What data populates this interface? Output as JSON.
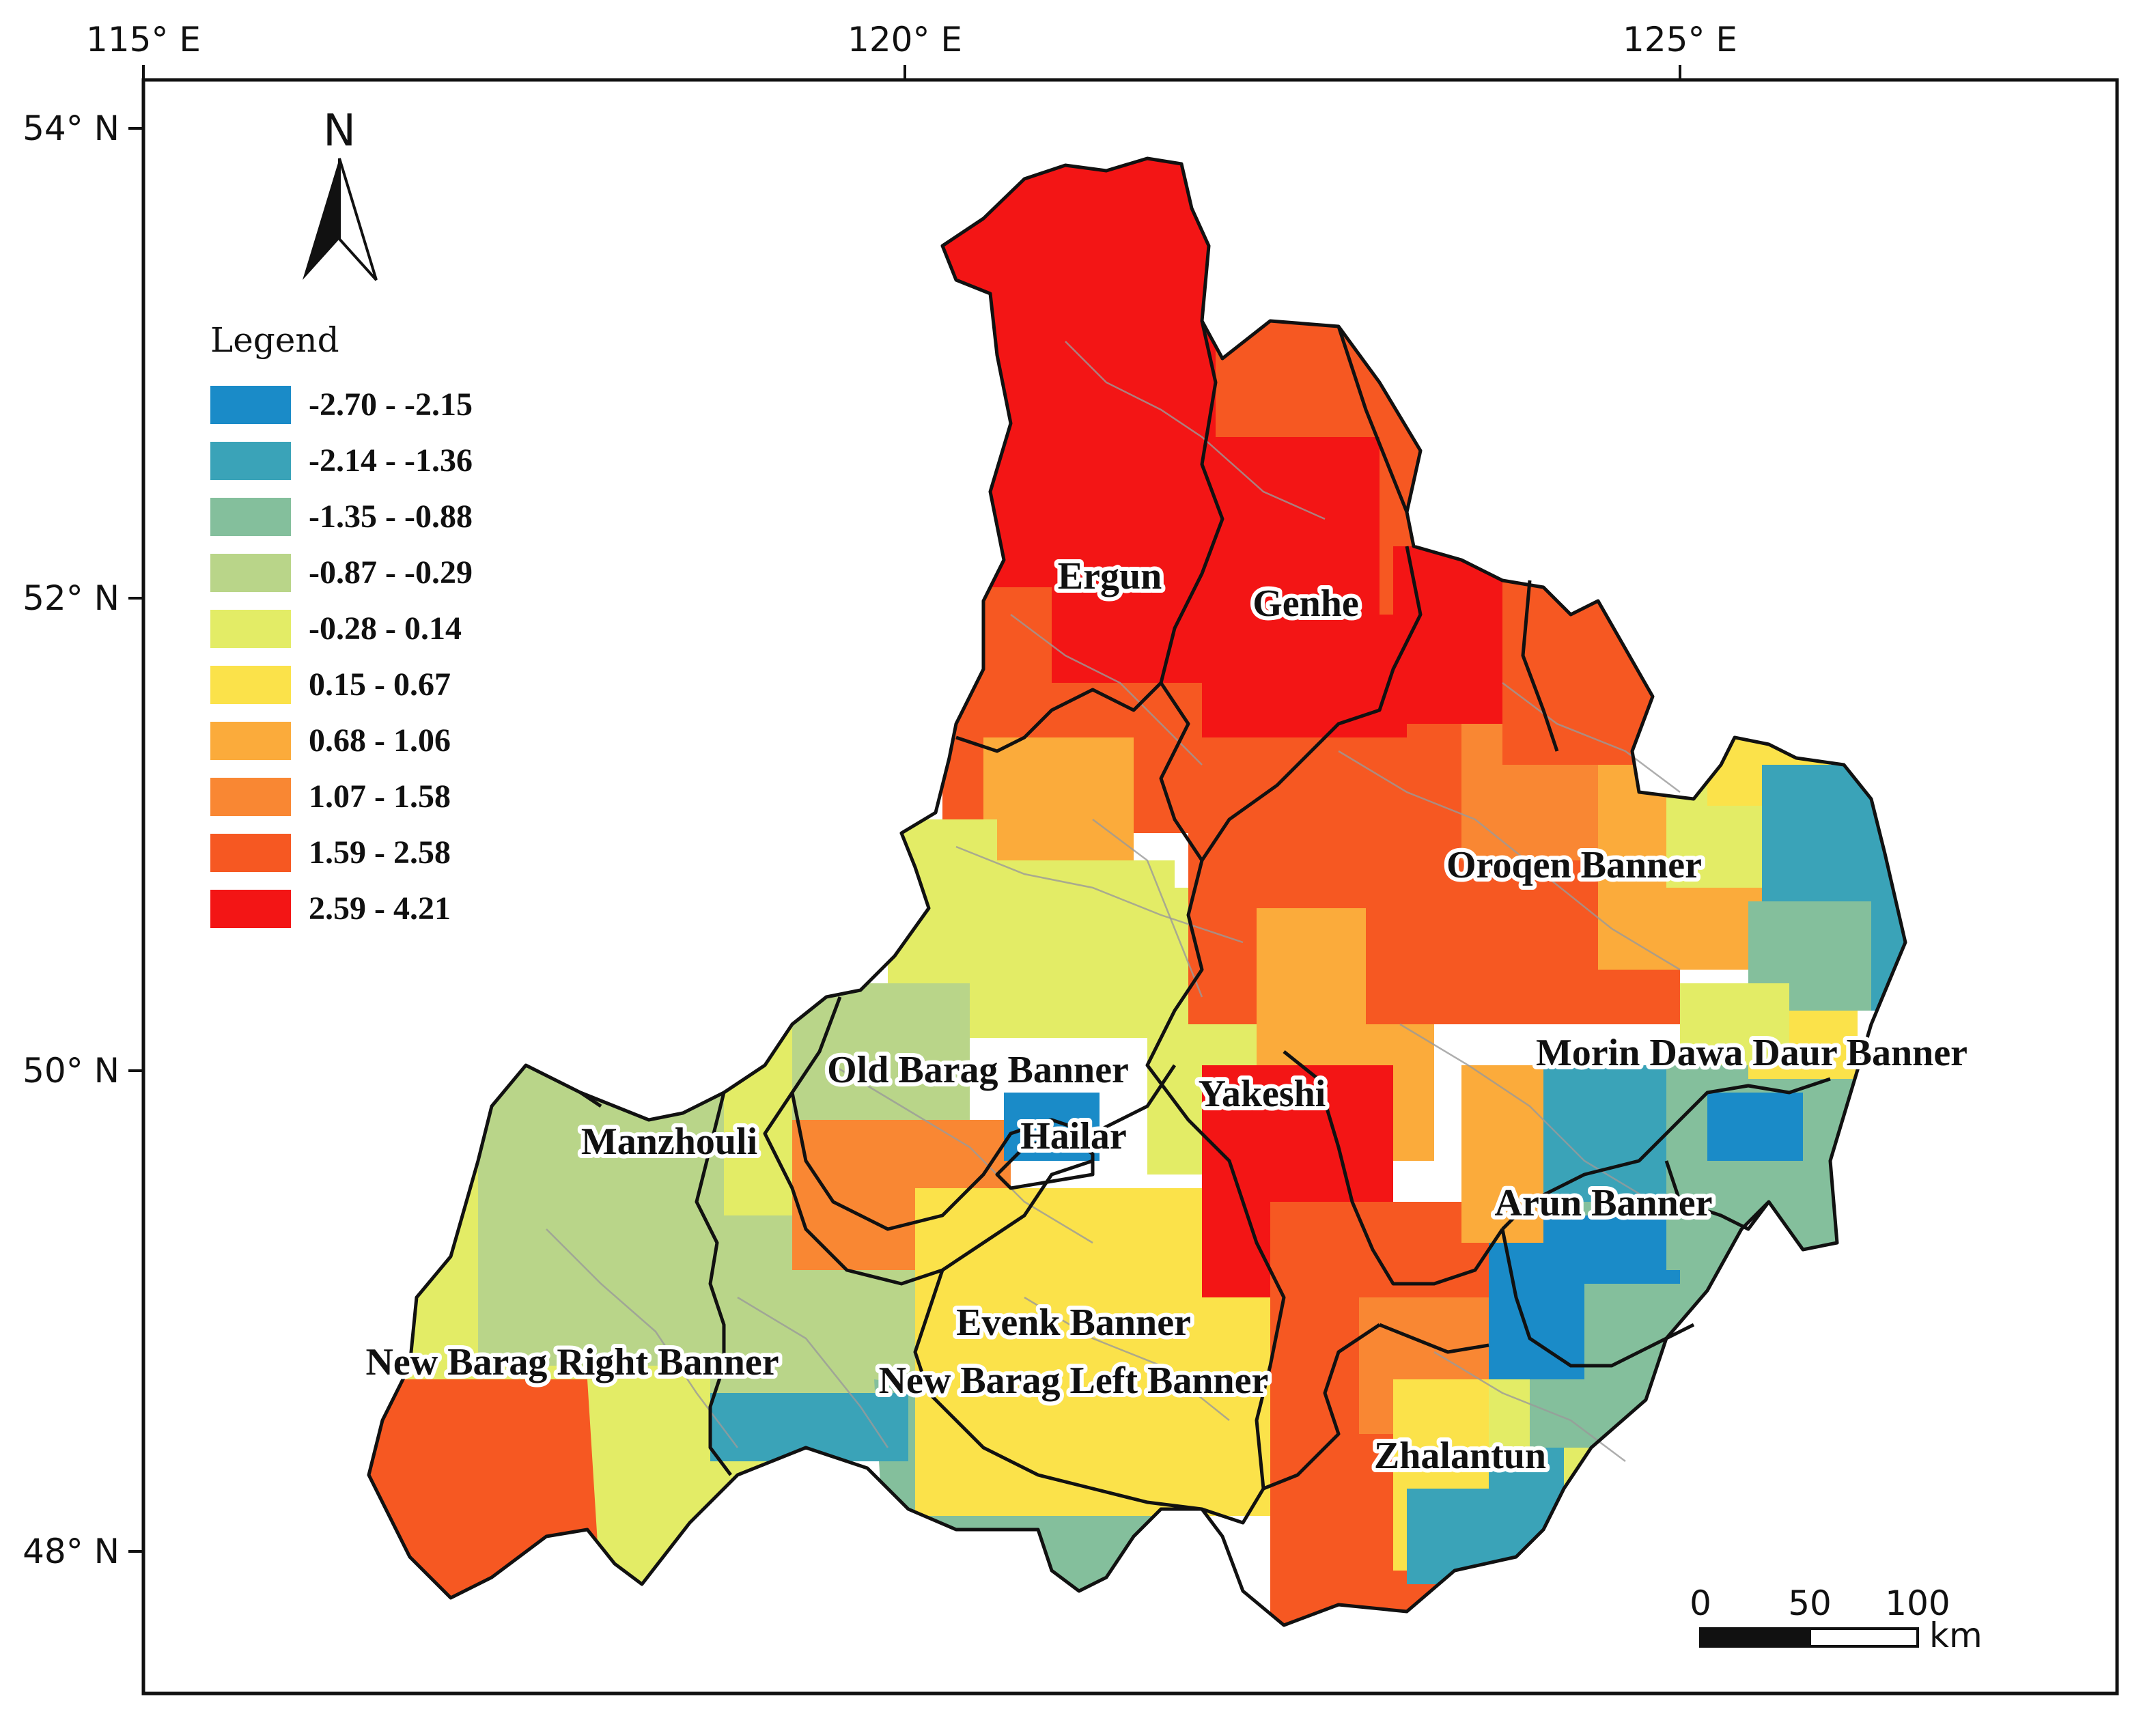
{
  "map": {
    "title": "",
    "graticule": {
      "longitude_labels": [
        "115° E",
        "120° E",
        "125° E"
      ],
      "latitude_labels": [
        "54° N",
        "52° N",
        "50° N",
        "48° N"
      ]
    },
    "north_arrow": {
      "letter": "N"
    },
    "legend": {
      "title": "Legend",
      "classes": [
        {
          "label": "-2.70 - -2.15",
          "color": "#1a8bc8"
        },
        {
          "label": "-2.14 - -1.36",
          "color": "#3aa3b8"
        },
        {
          "label": "-1.35 - -0.88",
          "color": "#84bf9c"
        },
        {
          "label": "-0.87 - -0.29",
          "color": "#b9d589"
        },
        {
          "label": "-0.28 - 0.14",
          "color": "#e3ec66"
        },
        {
          "label": "0.15 - 0.67",
          "color": "#fbe24a"
        },
        {
          "label": "0.68 - 1.06",
          "color": "#fbab3b"
        },
        {
          "label": "1.07 - 1.58",
          "color": "#f98733"
        },
        {
          "label": "1.59 - 2.58",
          "color": "#f65822"
        },
        {
          "label": "2.59 - 4.21",
          "color": "#f31515"
        }
      ]
    },
    "places": [
      {
        "id": "ergun",
        "name": "Ergun"
      },
      {
        "id": "genhe",
        "name": "Genhe"
      },
      {
        "id": "oroqen",
        "name": "Oroqen Banner"
      },
      {
        "id": "morin",
        "name": "Morin Dawa Daur Banner"
      },
      {
        "id": "old-barag",
        "name": "Old Barag Banner"
      },
      {
        "id": "yakeshi",
        "name": "Yakeshi"
      },
      {
        "id": "manzhouli",
        "name": "Manzhouli"
      },
      {
        "id": "hailar",
        "name": "Hailar"
      },
      {
        "id": "arun",
        "name": "Arun Banner"
      },
      {
        "id": "evenk",
        "name": "Evenk Banner"
      },
      {
        "id": "new-barag-right",
        "name": "New Barag Right Banner"
      },
      {
        "id": "new-barag-left",
        "name": "New Barag Left Banner"
      },
      {
        "id": "zhalantun",
        "name": "Zhalantun"
      }
    ],
    "scale_bar": {
      "ticks": [
        "0",
        "50",
        "100"
      ],
      "unit": "km"
    }
  }
}
